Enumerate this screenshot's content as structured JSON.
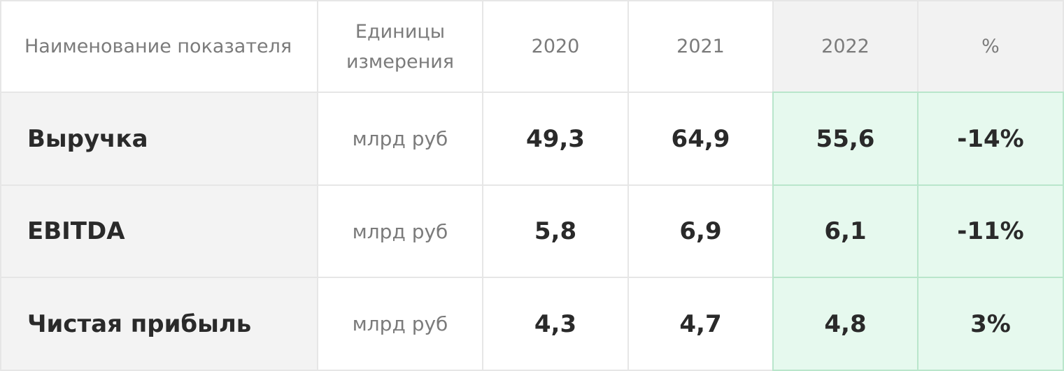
{
  "header": {
    "name": "Наименование показателя",
    "units": "Единицы измерения",
    "y2020": "2020",
    "y2021": "2021",
    "y2022": "2022",
    "pct": "%"
  },
  "rows": [
    {
      "label": "Выручка",
      "unit": "млрд руб",
      "v2020": "49,3",
      "v2021": "64,9",
      "v2022": "55,6",
      "pct": "-14%"
    },
    {
      "label": "EBITDA",
      "unit": "млрд руб",
      "v2020": "5,8",
      "v2021": "6,9",
      "v2022": "6,1",
      "pct": "-11%"
    },
    {
      "label": "Чистая прибыль",
      "unit": "млрд руб",
      "v2020": "4,3",
      "v2021": "4,7",
      "v2022": "4,8",
      "pct": "3%"
    }
  ],
  "colors": {
    "highlight_bg": "#e6f9ee",
    "highlight_border": "#b9e6cb",
    "label_bg": "#f3f3f3"
  }
}
